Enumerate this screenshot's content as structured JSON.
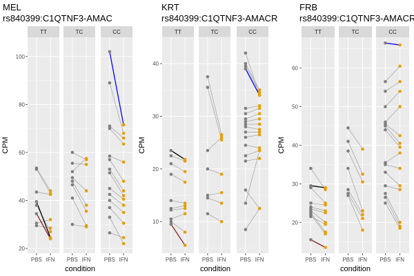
{
  "colors": {
    "panel_bg": "#ebebeb",
    "strip_bg": "#d9d9d9",
    "grid": "#ffffff",
    "pbs_point": "#7f7f7f",
    "ifn_point": "#e69f00",
    "gray_line": "#a9a9a9",
    "black_line": "#000000",
    "red_line": "#8b1a1a",
    "blue_line": "#0000ff"
  },
  "chart_data": [
    {
      "type": "line",
      "title": "MEL",
      "subtitle": "rs840399:C1QTNF3-AMAC",
      "xlabel": "condition",
      "ylabel": "CPM",
      "x_categories": [
        "PBS",
        "IFN"
      ],
      "ylim": [
        18,
        108
      ],
      "y_ticks": [
        20,
        40,
        60,
        80,
        100
      ],
      "facets": [
        "TT",
        "TC",
        "CC"
      ],
      "pairs": {
        "TT": [
          {
            "pbs": 53.5,
            "ifn": 44.0,
            "color": "gray"
          },
          {
            "pbs": 53.0,
            "ifn": 43.0,
            "color": "gray"
          },
          {
            "pbs": 43.5,
            "ifn": 42.5,
            "color": "gray"
          },
          {
            "pbs": 39.5,
            "ifn": 24.5,
            "color": "black"
          },
          {
            "pbs": 38.0,
            "ifn": 27.0,
            "color": "gray"
          },
          {
            "pbs": 34.5,
            "ifn": 24.0,
            "color": "red"
          },
          {
            "pbs": 30.5,
            "ifn": 32.0,
            "color": "gray"
          },
          {
            "pbs": 29.5,
            "ifn": 28.5,
            "color": "gray"
          }
        ],
        "TC": [
          {
            "pbs": 60.0,
            "ifn": 57.0,
            "color": "gray"
          },
          {
            "pbs": 55.5,
            "ifn": 55.0,
            "color": "gray"
          },
          {
            "pbs": 52.0,
            "ifn": 57.5,
            "color": "gray"
          },
          {
            "pbs": 49.5,
            "ifn": 44.0,
            "color": "gray"
          },
          {
            "pbs": 48.0,
            "ifn": 38.0,
            "color": "gray"
          },
          {
            "pbs": 46.5,
            "ifn": 35.5,
            "color": "gray"
          },
          {
            "pbs": 41.0,
            "ifn": 29.5,
            "color": "gray"
          },
          {
            "pbs": 30.0,
            "ifn": 29.0,
            "color": "gray"
          }
        ],
        "CC": [
          {
            "pbs": 102.0,
            "ifn": 71.5,
            "color": "blue"
          },
          {
            "pbs": 89.0,
            "ifn": 68.0,
            "color": "gray"
          },
          {
            "pbs": 71.0,
            "ifn": 66.0,
            "color": "gray"
          },
          {
            "pbs": 70.0,
            "ifn": 63.5,
            "color": "gray"
          },
          {
            "pbs": 58.5,
            "ifn": 56.0,
            "color": "gray"
          },
          {
            "pbs": 57.0,
            "ifn": 48.0,
            "color": "gray"
          },
          {
            "pbs": 53.0,
            "ifn": 44.0,
            "color": "gray"
          },
          {
            "pbs": 51.5,
            "ifn": 42.0,
            "color": "gray"
          },
          {
            "pbs": 45.0,
            "ifn": 40.5,
            "color": "gray"
          },
          {
            "pbs": 42.5,
            "ifn": 38.0,
            "color": "gray"
          },
          {
            "pbs": 40.0,
            "ifn": 35.0,
            "color": "gray"
          },
          {
            "pbs": 37.0,
            "ifn": 30.5,
            "color": "gray"
          },
          {
            "pbs": 26.5,
            "ifn": 24.5,
            "color": "gray"
          },
          {
            "pbs": 33.0,
            "ifn": 22.0,
            "color": "gray"
          }
        ]
      }
    },
    {
      "type": "line",
      "title": "KRT",
      "subtitle": "rs840399:C1QTNF3-AMACR",
      "xlabel": "condition",
      "ylabel": "CPM",
      "x_categories": [
        "PBS",
        "IFN"
      ],
      "ylim": [
        4,
        45
      ],
      "y_ticks": [
        10,
        20,
        30,
        40
      ],
      "facets": [
        "TT",
        "TC",
        "CC"
      ],
      "pairs": {
        "TT": [
          {
            "pbs": 23.5,
            "ifn": 21.8,
            "color": "black"
          },
          {
            "pbs": 22.5,
            "ifn": 21.5,
            "color": "gray"
          },
          {
            "pbs": 21.0,
            "ifn": 19.5,
            "color": "gray"
          },
          {
            "pbs": 19.0,
            "ifn": 17.5,
            "color": "gray"
          },
          {
            "pbs": 14.0,
            "ifn": 13.5,
            "color": "gray"
          },
          {
            "pbs": 12.5,
            "ifn": 13.0,
            "color": "gray"
          },
          {
            "pbs": 12.2,
            "ifn": 12.5,
            "color": "gray"
          },
          {
            "pbs": 10.5,
            "ifn": 11.5,
            "color": "gray"
          },
          {
            "pbs": 10.0,
            "ifn": 8.0,
            "color": "gray"
          },
          {
            "pbs": 9.5,
            "ifn": 5.5,
            "color": "red"
          }
        ],
        "TC": [
          {
            "pbs": 37.5,
            "ifn": 26.5,
            "color": "gray"
          },
          {
            "pbs": 35.5,
            "ifn": 25.5,
            "color": "gray"
          },
          {
            "pbs": 23.5,
            "ifn": 26.0,
            "color": "gray"
          },
          {
            "pbs": 20.0,
            "ifn": 19.0,
            "color": "gray"
          },
          {
            "pbs": 15.0,
            "ifn": 15.5,
            "color": "gray"
          },
          {
            "pbs": 14.5,
            "ifn": 13.5,
            "color": "gray"
          },
          {
            "pbs": 11.5,
            "ifn": 10.0,
            "color": "gray"
          }
        ],
        "CC": [
          {
            "pbs": 42.0,
            "ifn": 34.0,
            "color": "gray"
          },
          {
            "pbs": 40.0,
            "ifn": 35.0,
            "color": "gray"
          },
          {
            "pbs": 39.5,
            "ifn": 34.5,
            "color": "gray"
          },
          {
            "pbs": 39.0,
            "ifn": 34.0,
            "color": "blue"
          },
          {
            "pbs": 31.5,
            "ifn": 32.0,
            "color": "gray"
          },
          {
            "pbs": 30.5,
            "ifn": 31.5,
            "color": "gray"
          },
          {
            "pbs": 29.5,
            "ifn": 30.5,
            "color": "gray"
          },
          {
            "pbs": 29.0,
            "ifn": 29.5,
            "color": "gray"
          },
          {
            "pbs": 28.5,
            "ifn": 28.5,
            "color": "gray"
          },
          {
            "pbs": 28.0,
            "ifn": 27.5,
            "color": "gray"
          },
          {
            "pbs": 27.0,
            "ifn": 27.0,
            "color": "gray"
          },
          {
            "pbs": 26.0,
            "ifn": 26.5,
            "color": "gray"
          },
          {
            "pbs": 24.5,
            "ifn": 24.0,
            "color": "gray"
          },
          {
            "pbs": 22.5,
            "ifn": 23.5,
            "color": "gray"
          },
          {
            "pbs": 21.5,
            "ifn": 22.0,
            "color": "gray"
          },
          {
            "pbs": 16.0,
            "ifn": 12.5,
            "color": "gray"
          },
          {
            "pbs": 13.5,
            "ifn": 23.5,
            "color": "gray"
          },
          {
            "pbs": 8.5,
            "ifn": 12.5,
            "color": "gray"
          }
        ]
      }
    },
    {
      "type": "line",
      "title": "FRB",
      "subtitle": "rs840399:C1QTNF3-AMACR",
      "xlabel": "condition",
      "ylabel": "CPM",
      "x_categories": [
        "PBS",
        "IFN"
      ],
      "ylim": [
        12,
        68
      ],
      "y_ticks": [
        20,
        30,
        40,
        50,
        60
      ],
      "facets": [
        "TT",
        "TC",
        "CC"
      ],
      "pairs": {
        "TT": [
          {
            "pbs": 34.0,
            "ifn": 28.5,
            "color": "gray"
          },
          {
            "pbs": 29.5,
            "ifn": 29.0,
            "color": "black"
          },
          {
            "pbs": 29.0,
            "ifn": 25.0,
            "color": "gray"
          },
          {
            "pbs": 25.0,
            "ifn": 24.5,
            "color": "gray"
          },
          {
            "pbs": 24.0,
            "ifn": 23.0,
            "color": "gray"
          },
          {
            "pbs": 23.5,
            "ifn": 22.5,
            "color": "gray"
          },
          {
            "pbs": 23.0,
            "ifn": 20.0,
            "color": "gray"
          },
          {
            "pbs": 22.5,
            "ifn": 17.5,
            "color": "gray"
          },
          {
            "pbs": 22.0,
            "ifn": 17.0,
            "color": "gray"
          },
          {
            "pbs": 21.5,
            "ifn": 19.5,
            "color": "gray"
          },
          {
            "pbs": 15.5,
            "ifn": 13.5,
            "color": "red"
          }
        ],
        "TC": [
          {
            "pbs": 44.5,
            "ifn": 39.0,
            "color": "gray"
          },
          {
            "pbs": 41.0,
            "ifn": 32.5,
            "color": "gray"
          },
          {
            "pbs": 38.5,
            "ifn": 30.5,
            "color": "gray"
          },
          {
            "pbs": 34.0,
            "ifn": 23.0,
            "color": "gray"
          },
          {
            "pbs": 28.5,
            "ifn": 22.0,
            "color": "gray"
          },
          {
            "pbs": 27.5,
            "ifn": 21.0,
            "color": "gray"
          },
          {
            "pbs": 27.0,
            "ifn": 18.0,
            "color": "gray"
          }
        ],
        "CC": [
          {
            "pbs": 66.5,
            "ifn": 66.0,
            "color": "blue"
          },
          {
            "pbs": 56.5,
            "ifn": 60.5,
            "color": "gray"
          },
          {
            "pbs": 54.0,
            "ifn": 56.5,
            "color": "gray"
          },
          {
            "pbs": 50.0,
            "ifn": 54.0,
            "color": "gray"
          },
          {
            "pbs": 46.0,
            "ifn": 50.0,
            "color": "gray"
          },
          {
            "pbs": 45.5,
            "ifn": 42.5,
            "color": "gray"
          },
          {
            "pbs": 45.0,
            "ifn": 40.5,
            "color": "gray"
          },
          {
            "pbs": 44.0,
            "ifn": 39.5,
            "color": "gray"
          },
          {
            "pbs": 35.5,
            "ifn": 38.0,
            "color": "gray"
          },
          {
            "pbs": 35.0,
            "ifn": 34.0,
            "color": "gray"
          },
          {
            "pbs": 33.0,
            "ifn": 29.5,
            "color": "gray"
          },
          {
            "pbs": 29.5,
            "ifn": 28.5,
            "color": "gray"
          },
          {
            "pbs": 27.5,
            "ifn": 20.0,
            "color": "gray"
          },
          {
            "pbs": 26.5,
            "ifn": 19.0,
            "color": "gray"
          },
          {
            "pbs": 25.0,
            "ifn": 18.5,
            "color": "gray"
          }
        ]
      }
    }
  ]
}
